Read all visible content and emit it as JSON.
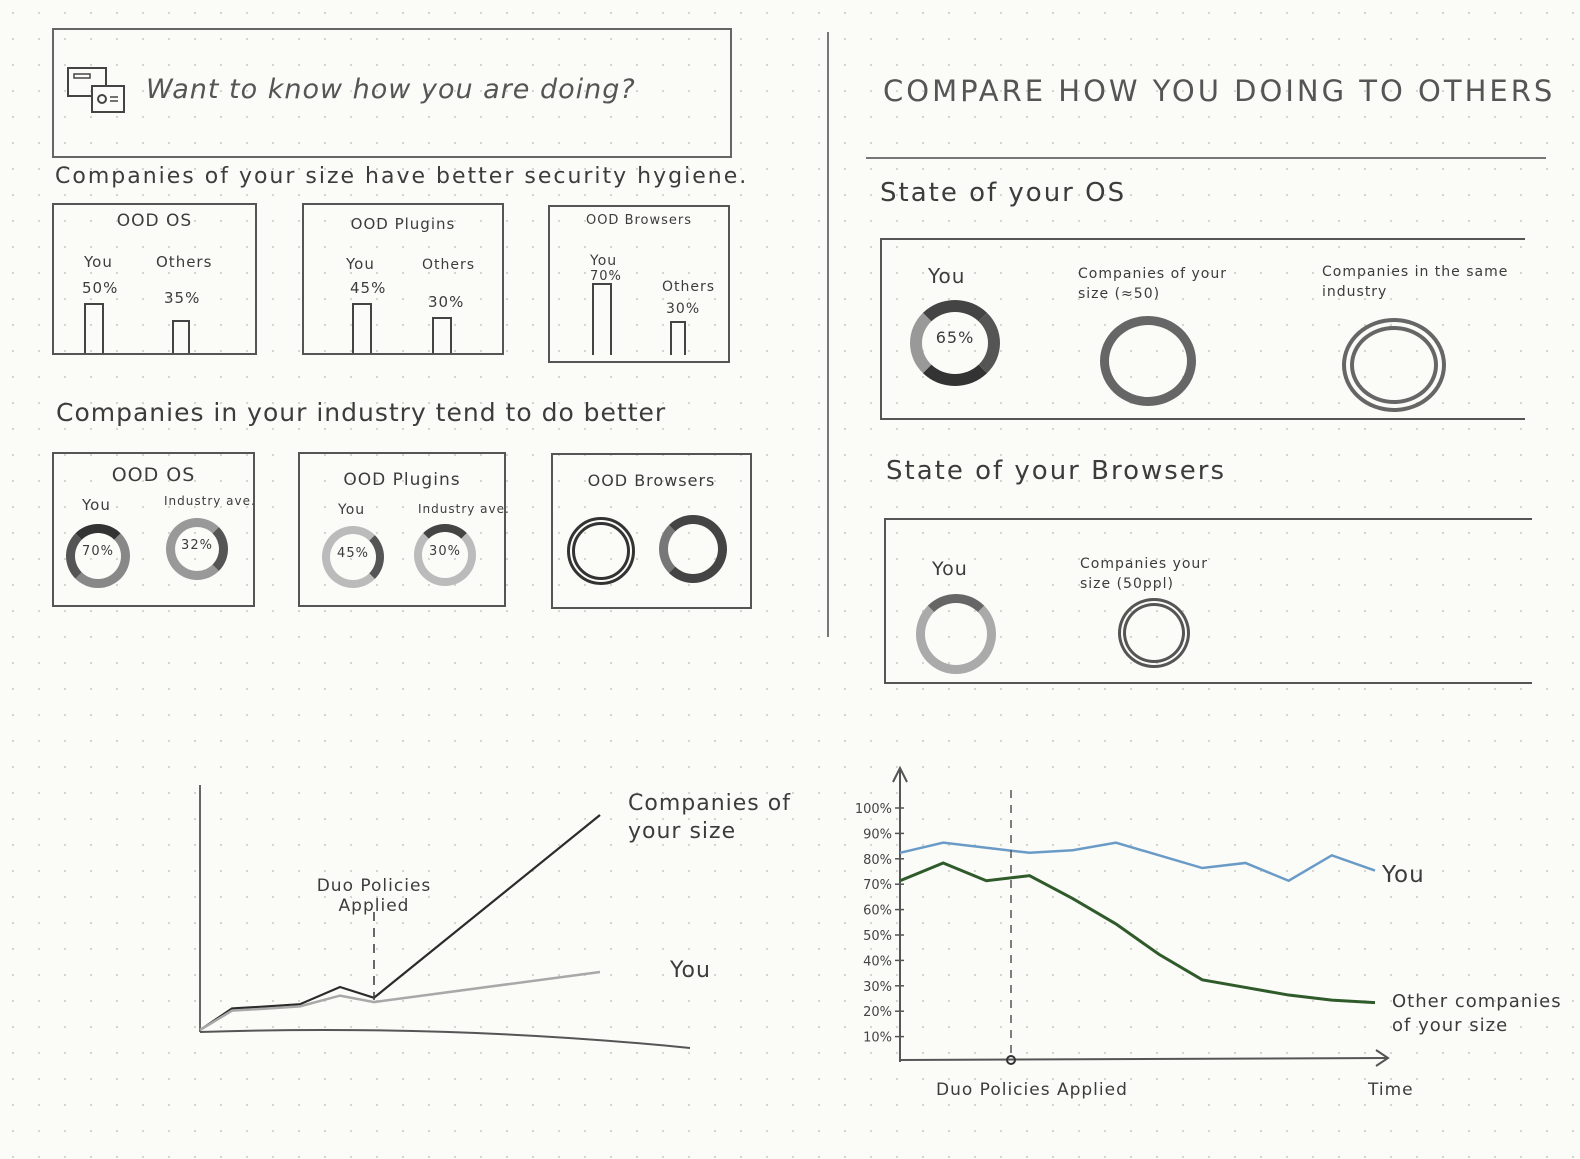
{
  "banner": {
    "text": "Want to know how you are doing?"
  },
  "left": {
    "size_heading": "Companies of your size have better security hygiene.",
    "size_cards": [
      {
        "title": "OOD OS",
        "you_label": "You",
        "you_value": "50%",
        "others_label": "Others",
        "others_value": "35%"
      },
      {
        "title": "OOD Plugins",
        "you_label": "You",
        "you_value": "45%",
        "others_label": "Others",
        "others_value": "30%"
      },
      {
        "title": "OOD Browsers",
        "you_label": "You",
        "you_value": "70%",
        "others_label": "Others",
        "others_value": "30%"
      }
    ],
    "industry_heading": "Companies in your industry tend to do better",
    "industry_cards": [
      {
        "title": "OOD OS",
        "you_label": "You",
        "you_value": "70%",
        "industry_label": "Industry ave.",
        "industry_value": "32%"
      },
      {
        "title": "OOD Plugins",
        "you_label": "You",
        "you_value": "45%",
        "industry_label": "Industry ave.",
        "industry_value": "30%"
      },
      {
        "title": "OOD Browsers"
      }
    ]
  },
  "right": {
    "title": "COMPARE HOW YOU DOING TO OTHERS",
    "os_heading": "State of your OS",
    "os_labels": {
      "you": "You",
      "size": "Companies of your size (≈50)",
      "industry": "Companies in the same industry"
    },
    "os_you_value": "65%",
    "browsers_heading": "State of your Browsers",
    "browser_labels": {
      "you": "You",
      "size": "Companies your size (50ppl)"
    }
  },
  "chart_left": {
    "annotation": "Duo Policies Applied",
    "label_companies": "Companies of your size",
    "label_you": "You"
  },
  "chart_data": [
    {
      "type": "line",
      "x": [
        0,
        1,
        2,
        3,
        4,
        5,
        6
      ],
      "series": [
        {
          "name": "Companies of your size",
          "values": [
            0,
            10,
            11,
            12,
            20,
            15,
            100
          ]
        },
        {
          "name": "You",
          "values": [
            0,
            9,
            10,
            11,
            16,
            13,
            27
          ]
        }
      ],
      "annotations": [
        "Duo Policies Applied"
      ]
    },
    {
      "type": "line",
      "xlabel": "Time",
      "yticks": [
        "10%",
        "20%",
        "30%",
        "40%",
        "50%",
        "60%",
        "70%",
        "80%",
        "90%",
        "100%"
      ],
      "ylim": [
        0,
        100
      ],
      "x": [
        0,
        1,
        2,
        3,
        4,
        5,
        6,
        7,
        8,
        9,
        10,
        11
      ],
      "series": [
        {
          "name": "You",
          "values": [
            80,
            84,
            82,
            80,
            81,
            84,
            79,
            74,
            76,
            69,
            79,
            73
          ]
        },
        {
          "name": "Other companies of your size",
          "values": [
            69,
            76,
            69,
            71,
            62,
            52,
            40,
            30,
            27,
            24,
            22,
            21
          ]
        }
      ],
      "annotations": [
        "Duo Policies Applied"
      ]
    }
  ]
}
